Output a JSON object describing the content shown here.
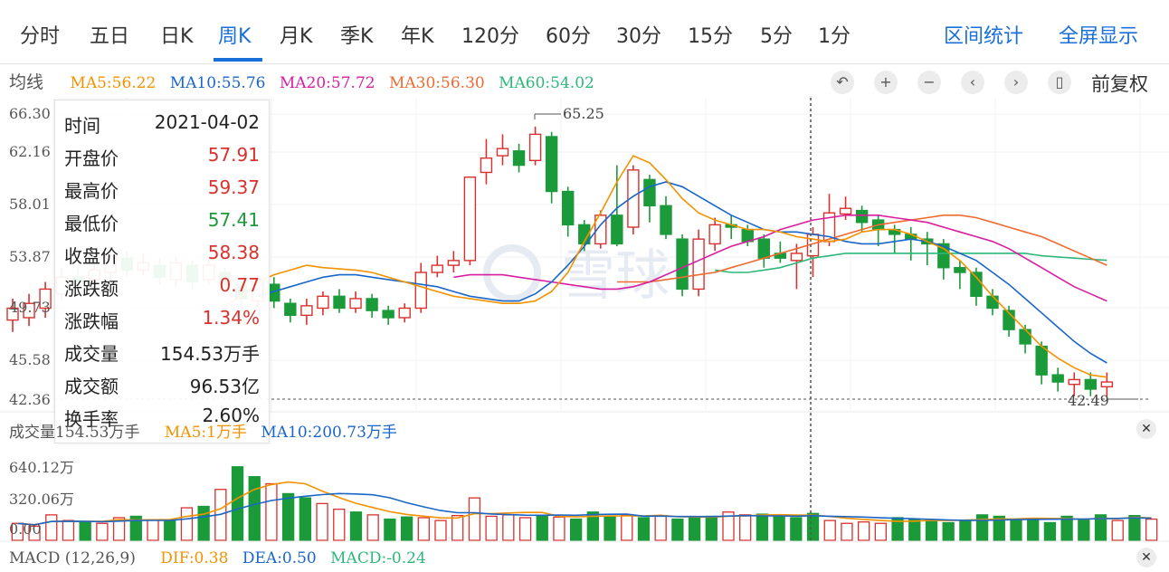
{
  "tabs": [
    {
      "label": "分时"
    },
    {
      "label": "五日"
    },
    {
      "label": "日K"
    },
    {
      "label": "周K"
    },
    {
      "label": "月K"
    },
    {
      "label": "季K"
    },
    {
      "label": "年K"
    },
    {
      "label": "120分"
    },
    {
      "label": "60分"
    },
    {
      "label": "30分"
    },
    {
      "label": "15分"
    },
    {
      "label": "5分"
    },
    {
      "label": "1分"
    }
  ],
  "active_tab": "周K",
  "right_tabs": {
    "range_stats": "区间统计",
    "fullscreen": "全屏显示"
  },
  "ma_legend": {
    "label": "均线",
    "ma5": "MA5:56.22",
    "ma10": "MA10:55.76",
    "ma20": "MA20:57.72",
    "ma30": "MA30:56.30",
    "ma60": "MA60:54.02"
  },
  "toolbar": {
    "fq_label": "前复权",
    "icons": [
      "undo-icon",
      "zoom-in-icon",
      "zoom-out-icon",
      "prev-icon",
      "next-icon",
      "candle-icon"
    ]
  },
  "y_axis_labels": [
    "66.30",
    "62.16",
    "58.01",
    "53.87",
    "49.73",
    "45.58",
    "42.36"
  ],
  "annotations": {
    "high": "65.25",
    "low": "42.49"
  },
  "tooltip": [
    {
      "k": "时间",
      "v": "2021-04-02",
      "c": "dark"
    },
    {
      "k": "开盘价",
      "v": "57.91",
      "c": "red"
    },
    {
      "k": "最高价",
      "v": "59.37",
      "c": "red"
    },
    {
      "k": "最低价",
      "v": "57.41",
      "c": "green"
    },
    {
      "k": "收盘价",
      "v": "58.38",
      "c": "red"
    },
    {
      "k": "涨跌额",
      "v": "0.77",
      "c": "red"
    },
    {
      "k": "涨跌幅",
      "v": "1.34%",
      "c": "red"
    },
    {
      "k": "成交量",
      "v": "154.53万手",
      "c": "dark"
    },
    {
      "k": "成交额",
      "v": "96.53亿",
      "c": "dark"
    },
    {
      "k": "换手率",
      "v": "2.60%",
      "c": "dark"
    }
  ],
  "volume_legend": {
    "label": "成交量",
    "vol": "154.53万手",
    "ma5": "MA5:",
    "ma5_tail": "1万手",
    "ma10": "MA10:200.73万手"
  },
  "volume_axis": [
    "640.12万",
    "320.06万",
    "0.00"
  ],
  "macd_legend": {
    "label": "MACD (12,26,9)",
    "dif": "DIF:0.38",
    "dea": "DEA:0.50",
    "macd": "MACD:-0.24"
  },
  "colors": {
    "up": "#d9312d",
    "down": "#1b9a3a",
    "ma5": "#f39200",
    "ma10": "#1a66c8",
    "ma20": "#d81ea0",
    "ma30": "#ef6a30",
    "ma60": "#2db87a",
    "accent": "#1a6fd8"
  },
  "watermark": "雪球",
  "chart_data": {
    "type": "candlestick",
    "ylim": [
      42.36,
      66.3
    ],
    "candles": [
      {
        "o": 49.0,
        "c": 50.0,
        "h": 50.8,
        "l": 48.0
      },
      {
        "o": 49.2,
        "c": 50.4,
        "h": 51.2,
        "l": 48.5
      },
      {
        "o": 50.0,
        "c": 51.6,
        "h": 52.2,
        "l": 49.2
      },
      {
        "o": 51.2,
        "c": 52.6,
        "h": 53.4,
        "l": 50.6
      },
      {
        "o": 52.6,
        "c": 52.2,
        "h": 53.8,
        "l": 51.6
      },
      {
        "o": 52.4,
        "c": 53.2,
        "h": 54.0,
        "l": 51.8
      },
      {
        "o": 53.0,
        "c": 54.4,
        "h": 55.2,
        "l": 52.4
      },
      {
        "o": 54.2,
        "c": 53.2,
        "h": 54.8,
        "l": 52.6
      },
      {
        "o": 53.2,
        "c": 53.8,
        "h": 54.6,
        "l": 52.8
      },
      {
        "o": 53.6,
        "c": 52.6,
        "h": 54.2,
        "l": 52.0
      },
      {
        "o": 52.4,
        "c": 53.8,
        "h": 54.4,
        "l": 51.8
      },
      {
        "o": 53.6,
        "c": 52.2,
        "h": 54.0,
        "l": 51.6
      },
      {
        "o": 52.4,
        "c": 53.6,
        "h": 54.2,
        "l": 52.0
      },
      {
        "o": 53.0,
        "c": 52.0,
        "h": 53.4,
        "l": 51.4
      },
      {
        "o": 52.0,
        "c": 50.8,
        "h": 52.6,
        "l": 50.2
      },
      {
        "o": 50.6,
        "c": 52.4,
        "h": 52.8,
        "l": 50.0
      },
      {
        "o": 52.0,
        "c": 50.6,
        "h": 52.6,
        "l": 50.0
      },
      {
        "o": 50.4,
        "c": 49.4,
        "h": 50.8,
        "l": 48.8
      },
      {
        "o": 49.4,
        "c": 50.2,
        "h": 50.8,
        "l": 48.6
      },
      {
        "o": 50.0,
        "c": 51.0,
        "h": 51.4,
        "l": 49.4
      },
      {
        "o": 51.0,
        "c": 50.0,
        "h": 51.6,
        "l": 49.6
      },
      {
        "o": 50.0,
        "c": 50.8,
        "h": 51.4,
        "l": 49.6
      },
      {
        "o": 50.8,
        "c": 49.8,
        "h": 51.2,
        "l": 49.2
      },
      {
        "o": 49.8,
        "c": 49.2,
        "h": 50.2,
        "l": 48.6
      },
      {
        "o": 49.2,
        "c": 50.0,
        "h": 50.4,
        "l": 48.8
      },
      {
        "o": 50.0,
        "c": 53.0,
        "h": 53.8,
        "l": 49.6
      },
      {
        "o": 53.0,
        "c": 53.6,
        "h": 54.4,
        "l": 52.6
      },
      {
        "o": 53.6,
        "c": 54.0,
        "h": 54.8,
        "l": 53.0
      },
      {
        "o": 54.0,
        "c": 61.0,
        "h": 61.0,
        "l": 53.6
      },
      {
        "o": 61.4,
        "c": 62.6,
        "h": 64.2,
        "l": 60.4
      },
      {
        "o": 62.8,
        "c": 63.4,
        "h": 64.6,
        "l": 62.0
      },
      {
        "o": 63.2,
        "c": 62.0,
        "h": 63.8,
        "l": 61.4
      },
      {
        "o": 62.4,
        "c": 64.6,
        "h": 65.25,
        "l": 62.0
      },
      {
        "o": 64.4,
        "c": 59.8,
        "h": 64.8,
        "l": 58.8
      },
      {
        "o": 59.8,
        "c": 57.0,
        "h": 60.2,
        "l": 56.0
      },
      {
        "o": 57.0,
        "c": 55.4,
        "h": 57.4,
        "l": 54.8
      },
      {
        "o": 55.4,
        "c": 57.8,
        "h": 58.2,
        "l": 55.0
      },
      {
        "o": 57.8,
        "c": 55.4,
        "h": 62.0,
        "l": 55.2
      },
      {
        "o": 56.8,
        "c": 61.6,
        "h": 62.0,
        "l": 56.2
      },
      {
        "o": 60.8,
        "c": 58.6,
        "h": 61.2,
        "l": 57.2
      },
      {
        "o": 58.6,
        "c": 56.2,
        "h": 59.4,
        "l": 55.8
      },
      {
        "o": 55.8,
        "c": 51.6,
        "h": 56.2,
        "l": 51.0
      },
      {
        "o": 51.6,
        "c": 55.8,
        "h": 56.6,
        "l": 51.0
      },
      {
        "o": 55.4,
        "c": 57.0,
        "h": 57.6,
        "l": 54.8
      },
      {
        "o": 57.0,
        "c": 56.8,
        "h": 57.8,
        "l": 55.8
      },
      {
        "o": 56.6,
        "c": 55.6,
        "h": 57.0,
        "l": 55.2
      },
      {
        "o": 55.8,
        "c": 54.2,
        "h": 56.2,
        "l": 53.4
      },
      {
        "o": 54.6,
        "c": 54.2,
        "h": 55.6,
        "l": 53.8
      },
      {
        "o": 54.0,
        "c": 54.6,
        "h": 55.4,
        "l": 51.6
      },
      {
        "o": 54.4,
        "c": 56.2,
        "h": 56.8,
        "l": 52.6
      },
      {
        "o": 55.6,
        "c": 58.0,
        "h": 59.6,
        "l": 55.2
      },
      {
        "o": 57.91,
        "c": 58.38,
        "h": 59.37,
        "l": 57.41
      },
      {
        "o": 58.2,
        "c": 57.2,
        "h": 58.6,
        "l": 56.4
      },
      {
        "o": 57.4,
        "c": 56.6,
        "h": 57.8,
        "l": 55.2
      },
      {
        "o": 56.6,
        "c": 56.2,
        "h": 57.0,
        "l": 54.6
      },
      {
        "o": 56.2,
        "c": 55.8,
        "h": 56.8,
        "l": 54.0
      },
      {
        "o": 55.8,
        "c": 55.4,
        "h": 56.4,
        "l": 53.6
      },
      {
        "o": 55.4,
        "c": 53.4,
        "h": 55.8,
        "l": 52.4
      },
      {
        "o": 53.4,
        "c": 53.0,
        "h": 54.0,
        "l": 51.6
      },
      {
        "o": 53.0,
        "c": 51.0,
        "h": 53.4,
        "l": 50.2
      },
      {
        "o": 51.0,
        "c": 50.0,
        "h": 51.6,
        "l": 49.4
      },
      {
        "o": 49.8,
        "c": 48.2,
        "h": 50.2,
        "l": 47.6
      },
      {
        "o": 48.2,
        "c": 47.0,
        "h": 48.6,
        "l": 46.2
      },
      {
        "o": 46.8,
        "c": 44.4,
        "h": 47.2,
        "l": 43.6
      },
      {
        "o": 44.4,
        "c": 43.8,
        "h": 45.0,
        "l": 43.0
      },
      {
        "o": 43.6,
        "c": 44.0,
        "h": 44.6,
        "l": 42.6
      },
      {
        "o": 44.0,
        "c": 43.2,
        "h": 44.6,
        "l": 42.6
      },
      {
        "o": 43.4,
        "c": 43.8,
        "h": 44.6,
        "l": 42.49
      }
    ],
    "ma5": [
      50.2,
      51.0,
      52.2,
      52.8,
      53.2,
      53.6,
      53.4,
      53.3,
      53.2,
      53.0,
      52.6,
      52.2,
      51.8,
      51.4,
      51.0,
      50.8,
      50.6,
      50.4,
      50.4,
      50.6,
      51.4,
      53.0,
      55.6,
      58.0,
      60.6,
      62.8,
      62.2,
      60.8,
      59.2,
      58.0,
      57.4,
      57.0,
      56.6,
      56.6,
      56.4,
      56.0,
      55.8,
      55.6,
      55.8,
      56.4,
      56.6,
      56.6,
      56.2,
      55.6,
      55.0,
      54.0,
      52.6,
      51.0,
      49.6,
      48.2,
      46.8,
      45.8,
      45.0,
      44.4,
      44.2
    ],
    "ma10": [
      51.0,
      51.4,
      51.8,
      52.2,
      52.6,
      52.8,
      52.8,
      52.6,
      52.4,
      52.2,
      52.0,
      51.8,
      51.4,
      51.0,
      50.8,
      50.6,
      50.6,
      51.2,
      52.2,
      53.6,
      55.2,
      57.0,
      58.4,
      59.4,
      60.2,
      60.6,
      60.2,
      59.4,
      58.6,
      57.8,
      57.2,
      56.6,
      56.4,
      56.4,
      56.2,
      56.0,
      55.6,
      55.4,
      55.4,
      55.6,
      55.8,
      55.6,
      55.2,
      54.6,
      54.0,
      53.0,
      52.0,
      50.8,
      49.6,
      48.4,
      47.2,
      46.2,
      45.4
    ],
    "ma20": [
      52.6,
      52.8,
      52.8,
      52.8,
      52.6,
      52.4,
      52.2,
      52.0,
      51.8,
      51.6,
      51.6,
      51.8,
      52.2,
      52.8,
      53.4,
      54.0,
      54.6,
      55.2,
      55.6,
      56.0,
      56.6,
      57.0,
      57.4,
      57.6,
      57.8,
      57.8,
      57.8,
      57.6,
      57.4,
      57.2,
      56.8,
      56.4,
      56.0,
      55.6,
      55.0,
      54.2,
      53.4,
      52.6,
      51.8,
      51.2,
      50.6
    ],
    "ma30": [
      52.2,
      52.2,
      52.2,
      52.4,
      52.6,
      52.8,
      53.0,
      53.4,
      53.8,
      54.2,
      54.6,
      55.0,
      55.4,
      55.8,
      56.2,
      56.6,
      57.0,
      57.2,
      57.4,
      57.6,
      57.8,
      57.8,
      57.6,
      57.2,
      56.8,
      56.4,
      56.0,
      55.4,
      54.8,
      54.2,
      53.6
    ],
    "ma60": [
      53.2,
      53.0,
      53.0,
      53.2,
      53.4,
      53.8,
      54.2,
      54.4,
      54.6,
      54.6,
      54.6,
      54.6,
      54.6,
      54.6,
      54.6,
      54.6,
      54.6,
      54.6,
      54.6,
      54.6,
      54.4,
      54.3,
      54.2,
      54.1,
      54.02
    ],
    "volume": [
      120,
      100,
      180,
      140,
      130,
      120,
      160,
      170,
      145,
      140,
      230,
      240,
      360,
      520,
      450,
      400,
      330,
      300,
      260,
      220,
      200,
      180,
      150,
      165,
      160,
      140,
      175,
      300,
      170,
      180,
      160,
      175,
      165,
      150,
      200,
      170,
      180,
      160,
      175,
      150,
      160,
      170,
      200,
      180,
      185,
      170,
      160,
      190,
      140,
      120,
      130,
      120,
      160,
      150,
      145,
      125,
      135,
      180,
      170,
      150,
      150,
      125,
      170,
      150,
      180,
      140,
      175,
      150
    ]
  }
}
